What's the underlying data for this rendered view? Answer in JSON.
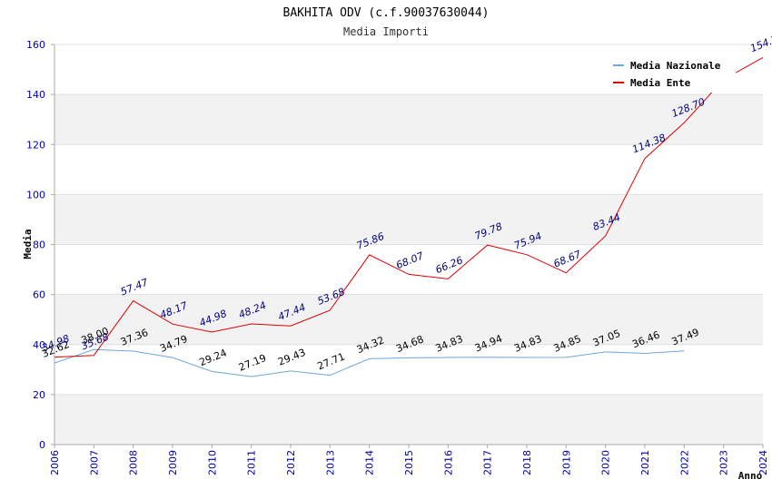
{
  "chart_data": {
    "type": "line",
    "title": "BAKHITA ODV (c.f.90037630044)",
    "subtitle": "Media Importi",
    "xlabel": "Anno",
    "ylabel": "Media",
    "ylim": [
      0,
      160
    ],
    "yticks": [
      0,
      20,
      40,
      60,
      80,
      100,
      120,
      140,
      160
    ],
    "x": [
      2006,
      2007,
      2008,
      2009,
      2010,
      2011,
      2012,
      2013,
      2014,
      2015,
      2016,
      2017,
      2018,
      2019,
      2020,
      2021,
      2022,
      2023,
      2024
    ],
    "x_tick_labels": [
      "2006",
      "2007",
      "2008",
      "2009",
      "2010",
      "2011",
      "2012",
      "2013",
      "2014",
      "2015",
      "2016",
      "2017",
      "2018",
      "2019",
      "2020",
      "2021",
      "2022",
      "2023",
      "2024"
    ],
    "grid": "horizontal bands",
    "legend_position": "top-right",
    "series": [
      {
        "name": "Media Nazionale",
        "color": "#6ea8e0",
        "label_color": "#000000",
        "values": [
          32.62,
          38.0,
          37.36,
          34.79,
          29.24,
          27.19,
          29.43,
          27.71,
          34.32,
          34.68,
          34.83,
          34.94,
          34.83,
          34.85,
          37.05,
          36.46,
          37.49,
          null,
          null
        ],
        "labels": [
          "32.62",
          "38.00",
          "37.36",
          "34.79",
          "29.24",
          "27.19",
          "29.43",
          "27.71",
          "34.32",
          "34.68",
          "34.83",
          "34.94",
          "34.83",
          "34.85",
          "37.05",
          "36.46",
          "37.49",
          "",
          ""
        ]
      },
      {
        "name": "Media Ente",
        "color": "#dd0000",
        "label_color": "#000080",
        "values": [
          34.98,
          35.68,
          57.47,
          48.17,
          44.98,
          48.24,
          47.44,
          53.68,
          75.86,
          68.07,
          66.26,
          79.78,
          75.94,
          68.67,
          83.44,
          114.38,
          128.7,
          146.0,
          154.77
        ],
        "labels": [
          "34.98",
          "35.68",
          "57.47",
          "48.17",
          "44.98",
          "48.24",
          "47.44",
          "53.68",
          "75.86",
          "68.07",
          "66.26",
          "79.78",
          "75.94",
          "68.67",
          "83.44",
          "114.38",
          "128.70",
          "",
          "154.77"
        ]
      }
    ]
  }
}
